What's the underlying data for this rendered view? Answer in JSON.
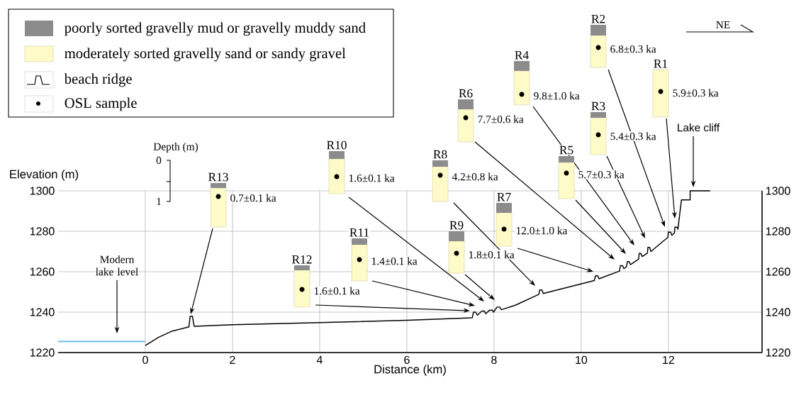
{
  "chart_data": {
    "type": "line",
    "xlabel": "Distance (km)",
    "ylabel": "Elevation (m)",
    "xlim": [
      -2,
      14.15
    ],
    "xticks": [
      0,
      2,
      4,
      6,
      8,
      10,
      12
    ],
    "ylim": [
      1220,
      1300
    ],
    "yticks": [
      1220,
      1240,
      1260,
      1280,
      1300
    ],
    "y2lim": [
      1220,
      1300
    ],
    "y2ticks": [
      1220,
      1240,
      1260,
      1280,
      1300
    ],
    "grid": true,
    "series": [
      {
        "color": "#000000",
        "x": [
          0,
          0.3,
          0.6,
          1.0,
          1.03,
          1.08,
          1.12,
          2,
          4,
          6,
          7.5,
          7.53,
          7.58,
          7.62,
          7.72,
          7.78,
          7.81,
          7.9,
          7.96,
          7.99,
          8.07,
          8.13,
          8.17,
          8.5,
          9.03,
          9.05,
          9.1,
          9.13,
          10.3,
          10.33,
          10.38,
          10.41,
          10.88,
          10.9,
          10.95,
          10.98,
          11.04,
          11.06,
          11.1,
          11.13,
          11.32,
          11.33,
          11.37,
          11.4,
          11.52,
          11.53,
          11.57,
          11.6,
          11.99,
          12.0,
          12.05,
          12.08,
          12.14,
          12.15,
          12.2,
          12.22,
          12.3,
          12.5,
          12.5,
          12.96
        ],
        "values": [
          1223.5,
          1227.5,
          1230.5,
          1232.7,
          1238,
          1238,
          1233,
          1233.8,
          1234.8,
          1236,
          1237.2,
          1240,
          1240,
          1238.5,
          1240.5,
          1240.5,
          1239.2,
          1241,
          1241,
          1240,
          1242.5,
          1242.5,
          1241.2,
          1243.5,
          1248.8,
          1251,
          1251,
          1249.2,
          1255.6,
          1258,
          1258,
          1256.5,
          1260.3,
          1263,
          1263,
          1261.5,
          1262.5,
          1265,
          1265,
          1263.5,
          1266.3,
          1269,
          1269,
          1267.5,
          1269.2,
          1272,
          1272,
          1270,
          1277,
          1279.6,
          1279.6,
          1278,
          1279.2,
          1282,
          1282,
          1281,
          1295.5,
          1295.5,
          1300,
          1300
        ]
      },
      {
        "color": "#5fb4e8",
        "x": [
          -2,
          0
        ],
        "values": [
          1225.5,
          1225.5
        ]
      }
    ],
    "annotations": [
      "poorly sorted gravelly mud or gravelly muddy sand",
      "moderately sorted gravelly sand or sandy gravel",
      "beach ridge",
      "OSL sample",
      "NE",
      "Depth (m)",
      "0",
      "1",
      "Modern lake level",
      "Lake cliff",
      "R13",
      "0.7±0.1 ka",
      "R12",
      "1.6±0.1 ka",
      "R11",
      "1.4±0.1 ka",
      "R10",
      "1.6±0.1 ka",
      "R9",
      "1.8±0.1 ka",
      "R8",
      "4.2±0.8 ka",
      "R7",
      "12.0±1.0 ka",
      "R6",
      "7.7±0.6 ka",
      "R5",
      "5.7±0.3 ka",
      "R4",
      "9.8±1.0 ka",
      "R3",
      "5.4±0.3 ka",
      "R2",
      "6.8±0.3 ka",
      "R1",
      "5.9±0.3 ka"
    ]
  }
}
